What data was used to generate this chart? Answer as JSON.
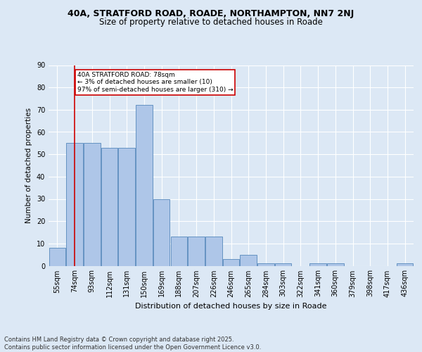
{
  "title1": "40A, STRATFORD ROAD, ROADE, NORTHAMPTON, NN7 2NJ",
  "title2": "Size of property relative to detached houses in Roade",
  "xlabel": "Distribution of detached houses by size in Roade",
  "ylabel": "Number of detached properties",
  "categories": [
    "55sqm",
    "74sqm",
    "93sqm",
    "112sqm",
    "131sqm",
    "150sqm",
    "169sqm",
    "188sqm",
    "207sqm",
    "226sqm",
    "246sqm",
    "265sqm",
    "284sqm",
    "303sqm",
    "322sqm",
    "341sqm",
    "360sqm",
    "379sqm",
    "398sqm",
    "417sqm",
    "436sqm"
  ],
  "values": [
    8,
    55,
    55,
    53,
    53,
    72,
    30,
    13,
    13,
    13,
    3,
    5,
    1,
    1,
    0,
    1,
    1,
    0,
    0,
    0,
    1
  ],
  "bar_color": "#aec6e8",
  "bar_edge_color": "#5588bb",
  "bg_color": "#dce8f5",
  "plot_bg_color": "#dce8f5",
  "grid_color": "#ffffff",
  "annotation_text": "40A STRATFORD ROAD: 78sqm\n← 3% of detached houses are smaller (10)\n97% of semi-detached houses are larger (310) →",
  "annotation_box_color": "#ffffff",
  "annotation_box_edge": "#cc0000",
  "red_line_color": "#cc0000",
  "footer": "Contains HM Land Registry data © Crown copyright and database right 2025.\nContains public sector information licensed under the Open Government Licence v3.0.",
  "ylim": [
    0,
    90
  ],
  "yticks": [
    0,
    10,
    20,
    30,
    40,
    50,
    60,
    70,
    80,
    90
  ],
  "title1_fontsize": 9,
  "title2_fontsize": 8.5,
  "xlabel_fontsize": 8,
  "ylabel_fontsize": 7.5,
  "tick_fontsize": 7,
  "footer_fontsize": 6,
  "red_line_x": 1.0
}
